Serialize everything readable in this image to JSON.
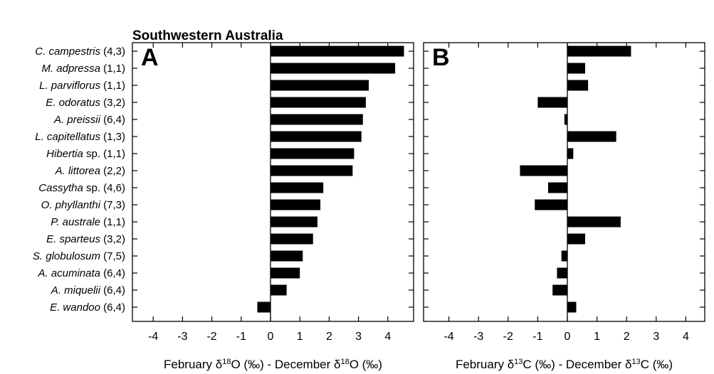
{
  "chart_data": [
    {
      "type": "bar",
      "orientation": "horizontal",
      "title": "Southwestern Australia",
      "panel": "A",
      "categories": [
        "C. campestris (4,3)",
        "M. adpressa (1,1)",
        "L. parviflorus (1,1)",
        "E. odoratus (3,2)",
        "A. preissii (6,4)",
        "L. capitellatus (1,3)",
        "Hibertia sp. (1,1)",
        "A. littorea (2,2)",
        "Cassytha sp. (4,6)",
        "O. phyllanthi (7,3)",
        "P. australe (1,1)",
        "E. sparteus (3,2)",
        "S. globulosum (7,5)",
        "A. acuminata (6,4)",
        "A. miquelii (6,4)",
        "E. wandoo (6,4)"
      ],
      "values": [
        4.55,
        4.25,
        3.35,
        3.25,
        3.15,
        3.1,
        2.85,
        2.8,
        1.8,
        1.7,
        1.6,
        1.45,
        1.1,
        1.0,
        0.55,
        -0.45
      ],
      "xlim": [
        -5,
        5
      ],
      "xticks": [
        "-4",
        "-3",
        "-2",
        "-1",
        "0",
        "1",
        "2",
        "3",
        "4"
      ],
      "xlabel": "February δ18O (‰) - December δ18O (‰)",
      "xlabel_parts": {
        "a": "February δ",
        "sup1": "18",
        "b": "O (‰) - December δ",
        "sup2": "18",
        "c": "O (‰)"
      }
    },
    {
      "type": "bar",
      "orientation": "horizontal",
      "panel": "B",
      "categories": [
        "C. campestris (4,3)",
        "M. adpressa (1,1)",
        "L. parviflorus (1,1)",
        "E. odoratus (3,2)",
        "A. preissii (6,4)",
        "L. capitellatus (1,3)",
        "Hibertia sp. (1,1)",
        "A. littorea (2,2)",
        "Cassytha sp. (4,6)",
        "O. phyllanthi (7,3)",
        "P. australe (1,1)",
        "E. sparteus (3,2)",
        "S. globulosum (7,5)",
        "A. acuminata (6,4)",
        "A. miquelii (6,4)",
        "E. wandoo (6,4)"
      ],
      "values": [
        2.15,
        0.6,
        0.7,
        -1.0,
        -0.1,
        1.65,
        0.2,
        -1.6,
        -0.65,
        -1.1,
        1.8,
        0.6,
        -0.2,
        -0.35,
        -0.5,
        0.3
      ],
      "xlim": [
        -5,
        5
      ],
      "xticks": [
        "-4",
        "-3",
        "-2",
        "-1",
        "0",
        "1",
        "2",
        "3",
        "4"
      ],
      "xlabel": "February δ13C (‰) - December δ13C (‰)",
      "xlabel_parts": {
        "a": "February δ",
        "sup1": "13",
        "b": "C (‰) - December δ",
        "sup2": "13",
        "c": "C (‰)"
      }
    }
  ],
  "labels": [
    {
      "italic": "C. campestris",
      "rest": " (4,3)"
    },
    {
      "italic": "M. adpressa",
      "rest": " (1,1)"
    },
    {
      "italic": "L. parviflorus",
      "rest": " (1,1)"
    },
    {
      "italic": "E. odoratus",
      "rest": " (3,2)"
    },
    {
      "italic": "A. preissii",
      "rest": " (6,4)"
    },
    {
      "italic": "L. capitellatus",
      "rest": " (1,3)"
    },
    {
      "italic": "Hibertia",
      "rest": " sp. (1,1)"
    },
    {
      "italic": "A. littorea",
      "rest": " (2,2)"
    },
    {
      "italic": "Cassytha",
      "rest": " sp. (4,6)"
    },
    {
      "italic": "O. phyllanthi",
      "rest": " (7,3)"
    },
    {
      "italic": "P. australe",
      "rest": " (1,1)"
    },
    {
      "italic": "E. sparteus",
      "rest": " (3,2)"
    },
    {
      "italic": "S. globulosum",
      "rest": " (7,5)"
    },
    {
      "italic": "A. acuminata",
      "rest": " (6,4)"
    },
    {
      "italic": "A. miquelii",
      "rest": " (6,4)"
    },
    {
      "italic": "E. wandoo",
      "rest": " (6,4)"
    }
  ],
  "colors": {
    "bar": "#000000",
    "axis": "#000000",
    "text": "#000000"
  }
}
